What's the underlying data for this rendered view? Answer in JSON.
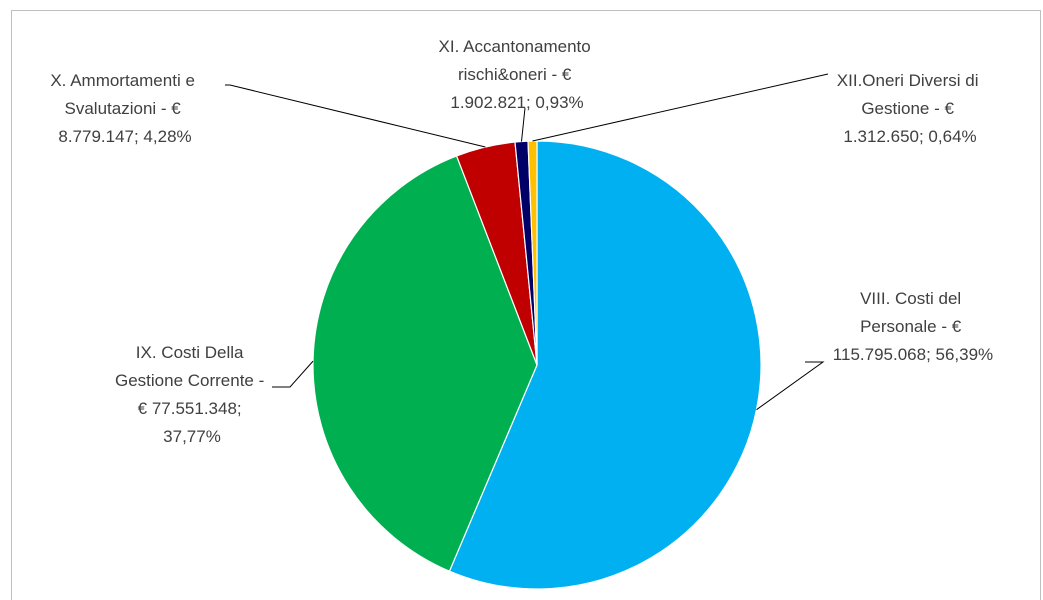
{
  "chart_data": {
    "type": "pie",
    "title": "",
    "start": "12 o'clock",
    "direction": "clockwise",
    "slices": [
      {
        "label": "VIII. Costi del Personale",
        "value": 115795068,
        "percent": 56.39,
        "color": "#00b0f0",
        "label_lines": [
          "VIII. Costi del",
          "Personale -  €",
          "115.795.068; 56,39%"
        ]
      },
      {
        "label": "IX. Costi Della Gestione Corrente",
        "value": 77551348,
        "percent": 37.77,
        "color": "#00b050",
        "label_lines": [
          "IX. Costi Della",
          "Gestione Corrente -",
          "€  77.551.348;",
          "37,77%"
        ]
      },
      {
        "label": "X. Ammortamenti e Svalutazioni",
        "value": 8779147,
        "percent": 4.28,
        "color": "#c00000",
        "label_lines": [
          "X. Ammortamenti e",
          "Svalutazioni -  €",
          "8.779.147; 4,28%"
        ]
      },
      {
        "label": "XI. Accantonamento rischi&oneri",
        "value": 1902821,
        "percent": 0.93,
        "color": "#000066",
        "label_lines": [
          "XI. Accantonamento",
          "rischi&oneri -  €",
          "1.902.821; 0,93%"
        ]
      },
      {
        "label": "XII.Oneri Diversi di Gestione",
        "value": 1312650,
        "percent": 0.64,
        "color": "#ffc000",
        "label_lines": [
          "XII.Oneri Diversi di",
          "Gestione -  €",
          "1.312.650; 0,64%"
        ]
      }
    ]
  }
}
